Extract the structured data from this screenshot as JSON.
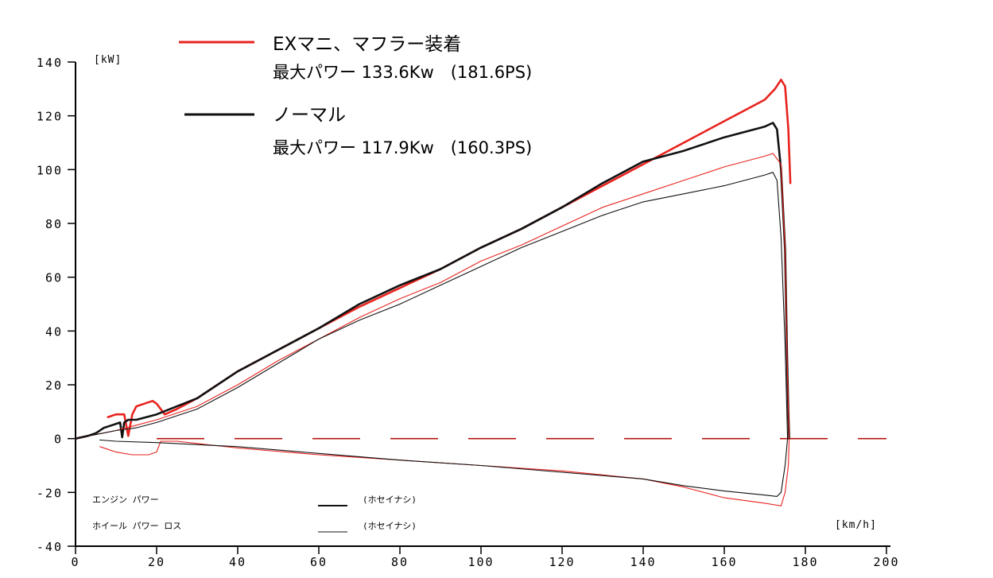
{
  "chart_data": {
    "type": "line",
    "title": "",
    "units": {
      "y": "[kW]",
      "x": "[km/h]"
    },
    "xlabel": "",
    "ylabel": "",
    "xlim": [
      0,
      200
    ],
    "ylim": [
      -40,
      140
    ],
    "x_ticks": [
      0,
      20,
      40,
      60,
      80,
      100,
      120,
      140,
      160,
      180,
      200
    ],
    "x_tick_labels": [
      "0",
      "20",
      "40",
      "60",
      "80",
      "100",
      "120",
      "140",
      "160",
      "180",
      "200"
    ],
    "y_ticks": [
      140,
      120,
      100,
      80,
      60,
      40,
      20,
      0,
      -20,
      -40
    ],
    "y_tick_labels": [
      "140",
      "120",
      "100",
      "80",
      "60",
      "40",
      "20",
      "0",
      "-20",
      "-40"
    ],
    "grid": false,
    "legend_placement": "top-center",
    "legend": [
      {
        "name": "EXマニ、マフラー装着",
        "detail": "最大パワー 133.6Kw　(181.6PS)",
        "color": "#e8231e"
      },
      {
        "name": "ノーマル",
        "detail": "最大パワー 117.9Kw　(160.3PS)",
        "color": "#111111"
      }
    ],
    "inner_legend": [
      {
        "label": "エンジン パワー",
        "note": "(ホセイナシ)"
      },
      {
        "label": "ホイール パワー ロス",
        "note": "(ホセイナシ)"
      }
    ],
    "series": [
      {
        "name": "EXマニ、マフラー装着",
        "color": "#e8231e",
        "weight": "bold",
        "x": [
          8,
          10,
          12,
          13,
          14,
          15,
          17,
          19,
          20,
          22,
          25,
          30,
          40,
          50,
          60,
          70,
          80,
          90,
          100,
          110,
          120,
          130,
          140,
          150,
          160,
          170,
          172.5,
          174,
          175,
          175.8,
          176.3
        ],
        "y": [
          8,
          9,
          9,
          1,
          9,
          12,
          13,
          14,
          13,
          9,
          11,
          15,
          25,
          33,
          41,
          49,
          56,
          63,
          71,
          78,
          86,
          94,
          102,
          110,
          118,
          126,
          130,
          133.4,
          131,
          115,
          95
        ]
      },
      {
        "name": "ノーマル",
        "color": "#111111",
        "weight": "bold",
        "x": [
          0,
          3,
          5,
          7,
          9,
          11,
          11.5,
          12,
          13,
          15,
          20,
          25,
          30,
          40,
          50,
          60,
          70,
          80,
          90,
          100,
          110,
          120,
          130,
          140,
          150,
          160,
          165,
          170,
          172,
          173,
          174,
          175,
          175.5,
          175.8,
          176
        ],
        "y": [
          0,
          1,
          2,
          4,
          5,
          6,
          0.5,
          6,
          7,
          7,
          9,
          12,
          15,
          25,
          33,
          41,
          50,
          57,
          63,
          71,
          78,
          86,
          95,
          103,
          107,
          112,
          114,
          116,
          117.4,
          115,
          100,
          70,
          30,
          10,
          0
        ]
      },
      {
        "name": "",
        "color": "#e8231e",
        "weight": "thin",
        "x": [
          0,
          10,
          15,
          20,
          30,
          40,
          50,
          60,
          70,
          80,
          90,
          100,
          110,
          120,
          130,
          140,
          150,
          160,
          170,
          172,
          174,
          175,
          175.5,
          176
        ],
        "y": [
          0,
          3,
          5,
          7,
          12,
          20,
          29,
          37,
          45,
          52,
          58,
          66,
          72,
          79,
          86,
          91,
          96,
          101,
          105,
          106,
          102,
          70,
          30,
          0
        ]
      },
      {
        "name": "",
        "color": "#111111",
        "weight": "thin",
        "x": [
          0,
          10,
          15,
          20,
          30,
          40,
          50,
          60,
          70,
          80,
          90,
          100,
          110,
          120,
          130,
          140,
          150,
          160,
          170,
          172,
          173,
          174,
          175,
          175.6
        ],
        "y": [
          0,
          3,
          4,
          6,
          11,
          19,
          28,
          37,
          44,
          50,
          57,
          64,
          71,
          77,
          83,
          88,
          91,
          94,
          98,
          99,
          96,
          75,
          35,
          0
        ]
      },
      {
        "name": "",
        "color": "#e8231e",
        "weight": "thin",
        "x": [
          6,
          8,
          10,
          14,
          18,
          20,
          21,
          25,
          40,
          60,
          80,
          100,
          120,
          140,
          150,
          160,
          170,
          174,
          175,
          175.8,
          176
        ],
        "y": [
          -3,
          -4,
          -5,
          -6,
          -6,
          -5,
          -1,
          -1,
          -3.5,
          -6,
          -8,
          -10,
          -12,
          -15,
          -18,
          -22,
          -24,
          -25,
          -20,
          -10,
          0
        ]
      },
      {
        "name": "",
        "color": "#111111",
        "weight": "thin",
        "x": [
          6,
          10,
          20,
          40,
          60,
          80,
          100,
          120,
          140,
          150,
          160,
          170,
          173,
          174,
          175,
          175.6
        ],
        "y": [
          -0.5,
          -1,
          -1.5,
          -3,
          -5.5,
          -8,
          -10,
          -12.5,
          -15,
          -17.5,
          -19.5,
          -21,
          -21.5,
          -20,
          -10,
          0
        ]
      }
    ]
  }
}
